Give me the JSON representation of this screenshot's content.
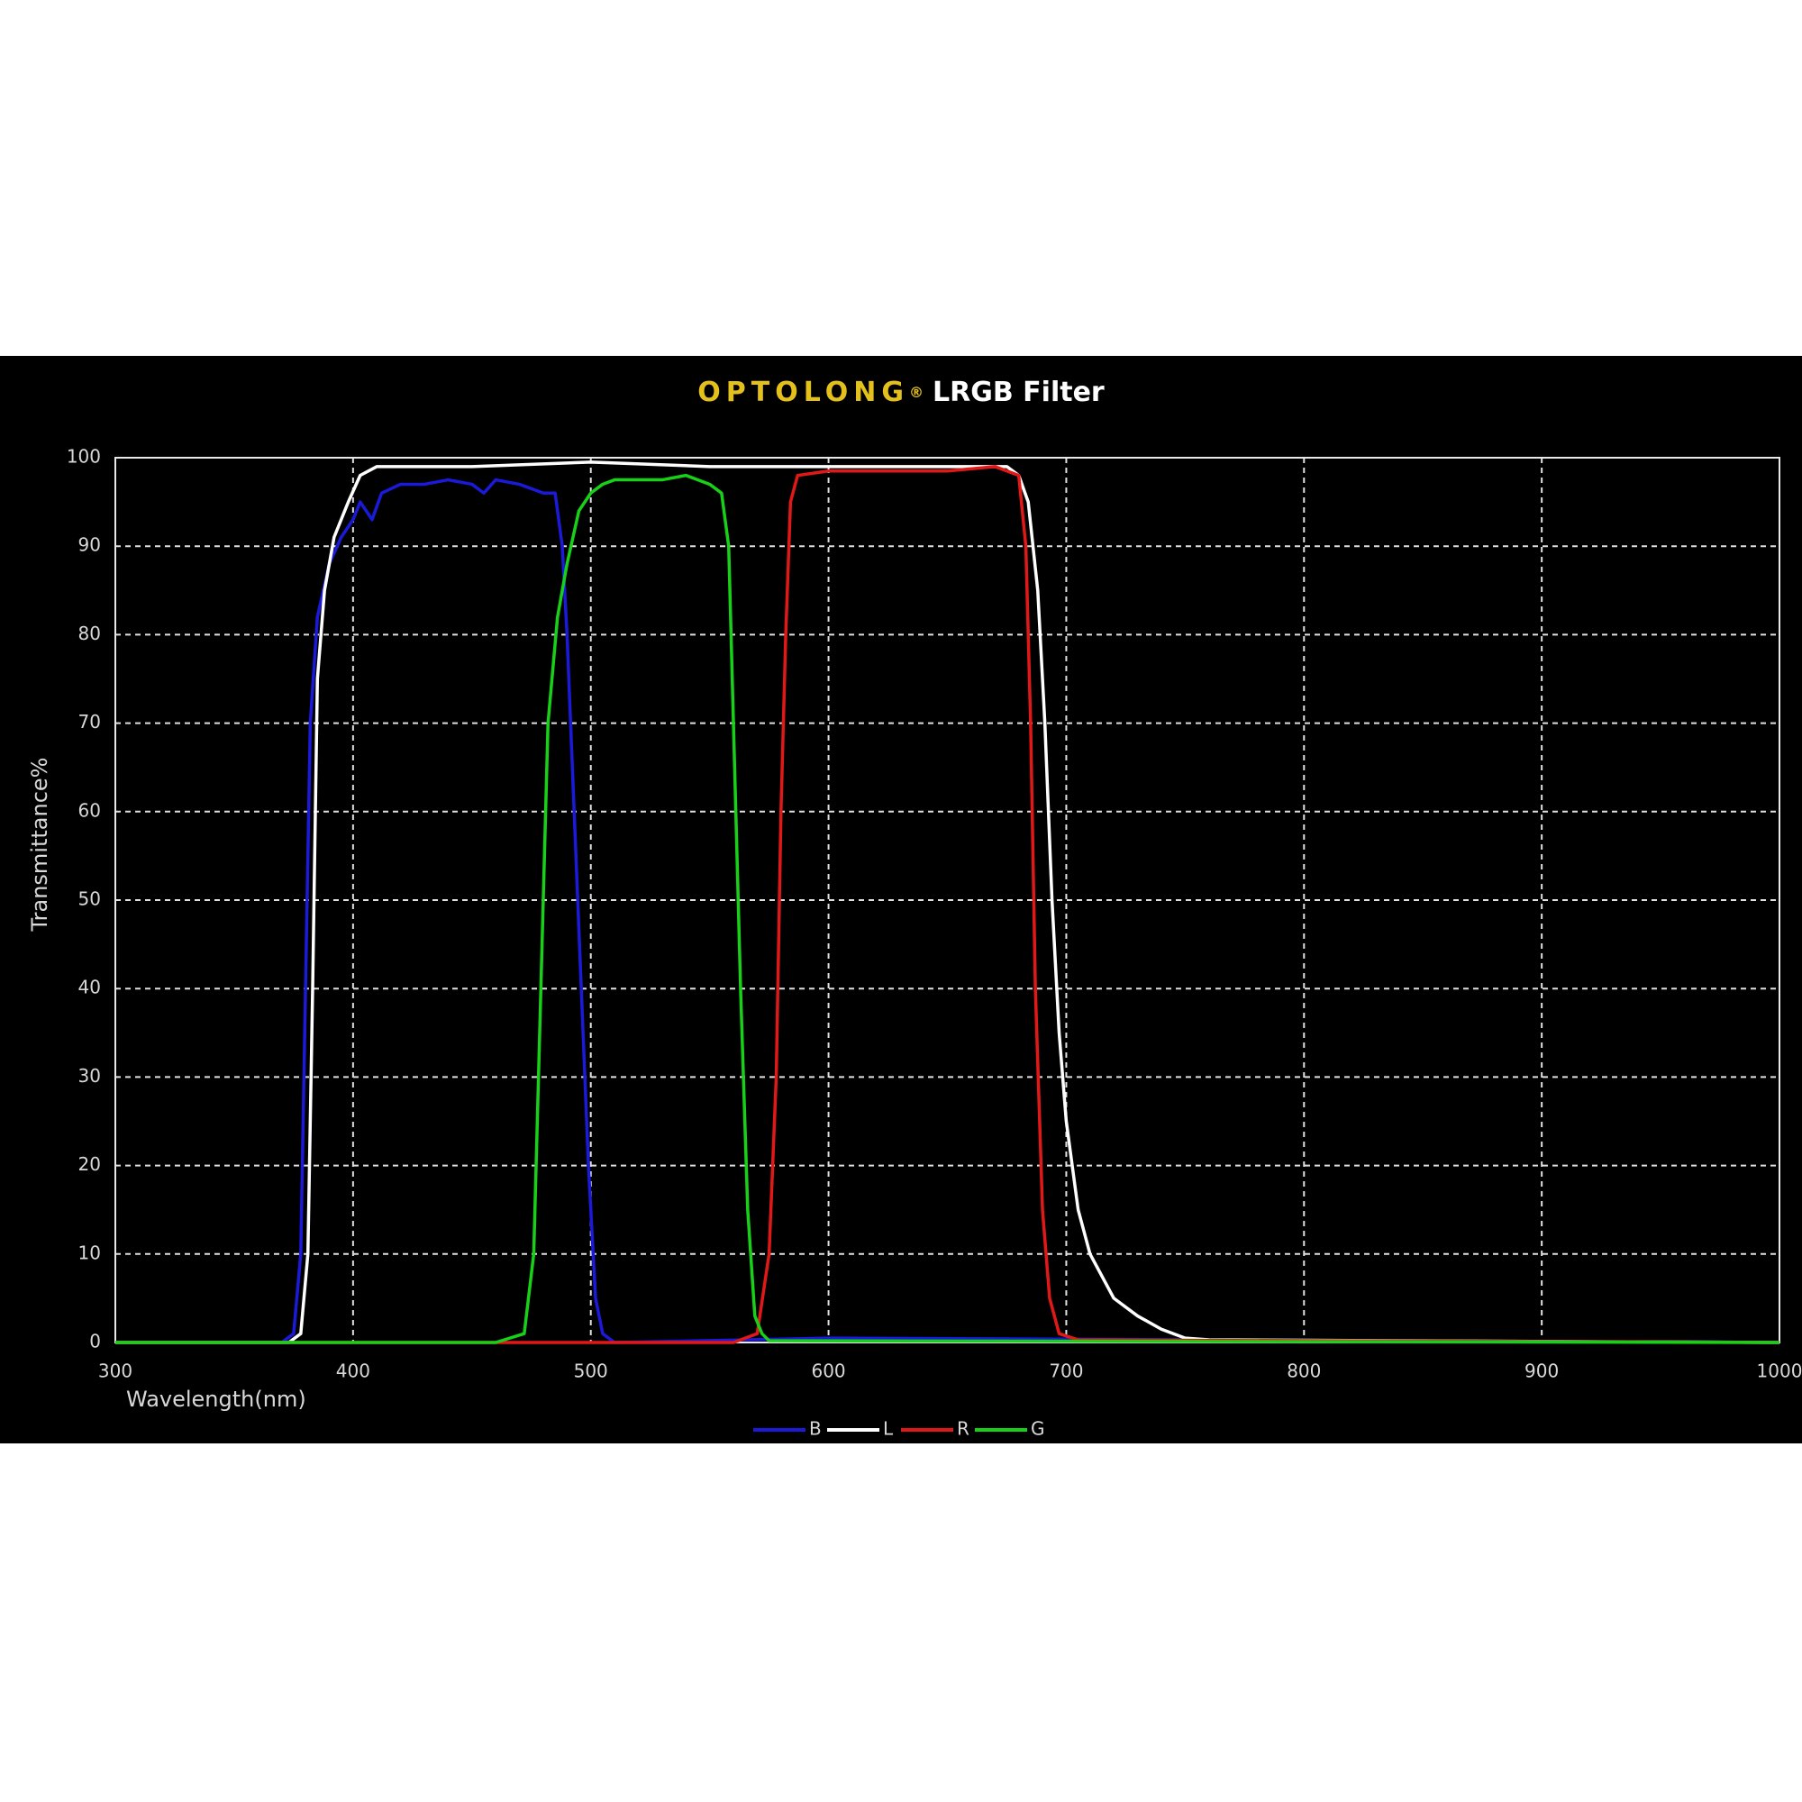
{
  "chart_data": {
    "type": "line",
    "brand": "OPTOLONG",
    "brand_mark": "®",
    "title": "LRGB Filter",
    "xlabel": "Wavelength(nm)",
    "ylabel": "Transmittance%",
    "xlim": [
      300,
      1000
    ],
    "ylim": [
      0,
      100
    ],
    "xticks": [
      300,
      400,
      500,
      600,
      700,
      800,
      900,
      1000
    ],
    "yticks": [
      0,
      10,
      20,
      30,
      40,
      50,
      60,
      70,
      80,
      90,
      100
    ],
    "grid": true,
    "legend": "bottom",
    "series": [
      {
        "name": "B",
        "color": "#1a1ad8",
        "x": [
          300,
          370,
          375,
          378,
          380,
          382,
          385,
          390,
          395,
          400,
          403,
          408,
          412,
          420,
          430,
          440,
          450,
          455,
          460,
          470,
          480,
          485,
          488,
          490,
          493,
          496,
          499,
          502,
          505,
          510,
          600,
          1000
        ],
        "values": [
          0,
          0,
          1,
          10,
          40,
          70,
          82,
          88,
          91,
          93,
          95,
          93,
          96,
          97,
          97,
          97.5,
          97,
          96,
          97.5,
          97,
          96,
          96,
          90,
          80,
          60,
          40,
          20,
          5,
          1,
          0,
          0.5,
          0
        ]
      },
      {
        "name": "L",
        "color": "#ffffff",
        "x": [
          300,
          373,
          378,
          381,
          383,
          385,
          388,
          392,
          398,
          403,
          410,
          430,
          450,
          500,
          550,
          600,
          650,
          675,
          680,
          684,
          688,
          691,
          694,
          697,
          700,
          705,
          710,
          720,
          730,
          740,
          750,
          760,
          1000
        ],
        "values": [
          0,
          0,
          1,
          10,
          40,
          75,
          85,
          91,
          95,
          98,
          99,
          99,
          99,
          99.5,
          99,
          99,
          99,
          99,
          98,
          95,
          85,
          70,
          50,
          35,
          25,
          15,
          10,
          5,
          3,
          1.5,
          0.5,
          0.3,
          0
        ]
      },
      {
        "name": "R",
        "color": "#e01818",
        "x": [
          300,
          560,
          570,
          575,
          578,
          580,
          582,
          584,
          587,
          600,
          650,
          670,
          680,
          683,
          685,
          687,
          690,
          693,
          697,
          705,
          1000
        ],
        "values": [
          0,
          0,
          1,
          10,
          30,
          60,
          80,
          95,
          98,
          98.5,
          98.5,
          99,
          98,
          90,
          70,
          40,
          15,
          5,
          1,
          0.3,
          0
        ]
      },
      {
        "name": "G",
        "color": "#18d018",
        "x": [
          300,
          460,
          472,
          476,
          479,
          482,
          486,
          490,
          495,
          500,
          505,
          510,
          530,
          540,
          550,
          555,
          558,
          560,
          563,
          566,
          569,
          572,
          575,
          1000
        ],
        "values": [
          0,
          0,
          1,
          10,
          40,
          70,
          82,
          88,
          94,
          96,
          97,
          97.5,
          97.5,
          98,
          97,
          96,
          90,
          70,
          40,
          15,
          3,
          1,
          0.2,
          0
        ]
      }
    ]
  }
}
